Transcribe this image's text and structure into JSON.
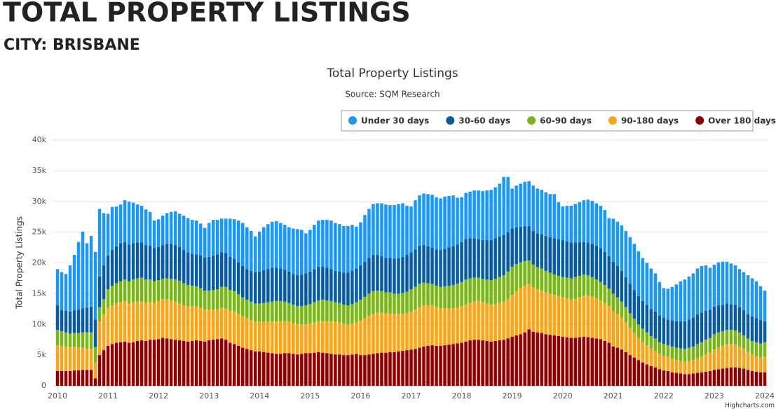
{
  "header": {
    "title": "TOTAL PROPERTY LISTINGS",
    "subtitle": "CITY: BRISBANE"
  },
  "chart_data": {
    "type": "stacked_bar",
    "title": "Total Property Listings",
    "subtitle": "Source: SQM Research",
    "y_label": "Total Property Listings",
    "credits": "Highcharts.com",
    "grid": true,
    "legend": "top-right",
    "x": [
      "2010-01",
      "2010-02",
      "2010-03",
      "2010-04",
      "2010-05",
      "2010-06",
      "2010-07",
      "2010-08",
      "2010-09",
      "2010-10",
      "2010-11",
      "2010-12",
      "2011-01",
      "2011-02",
      "2011-03",
      "2011-04",
      "2011-05",
      "2011-06",
      "2011-07",
      "2011-08",
      "2011-09",
      "2011-10",
      "2011-11",
      "2011-12",
      "2012-01",
      "2012-02",
      "2012-03",
      "2012-04",
      "2012-05",
      "2012-06",
      "2012-07",
      "2012-08",
      "2012-09",
      "2012-10",
      "2012-11",
      "2012-12",
      "2013-01",
      "2013-02",
      "2013-03",
      "2013-04",
      "2013-05",
      "2013-06",
      "2013-07",
      "2013-08",
      "2013-09",
      "2013-10",
      "2013-11",
      "2013-12",
      "2014-01",
      "2014-02",
      "2014-03",
      "2014-04",
      "2014-05",
      "2014-06",
      "2014-07",
      "2014-08",
      "2014-09",
      "2014-10",
      "2014-11",
      "2014-12",
      "2015-01",
      "2015-02",
      "2015-03",
      "2015-04",
      "2015-05",
      "2015-06",
      "2015-07",
      "2015-08",
      "2015-09",
      "2015-10",
      "2015-11",
      "2015-12",
      "2016-01",
      "2016-02",
      "2016-03",
      "2016-04",
      "2016-05",
      "2016-06",
      "2016-07",
      "2016-08",
      "2016-09",
      "2016-10",
      "2016-11",
      "2016-12",
      "2017-01",
      "2017-02",
      "2017-03",
      "2017-04",
      "2017-05",
      "2017-06",
      "2017-07",
      "2017-08",
      "2017-09",
      "2017-10",
      "2017-11",
      "2017-12",
      "2018-01",
      "2018-02",
      "2018-03",
      "2018-04",
      "2018-05",
      "2018-06",
      "2018-07",
      "2018-08",
      "2018-09",
      "2018-10",
      "2018-11",
      "2018-12",
      "2019-01",
      "2019-02",
      "2019-03",
      "2019-04",
      "2019-05",
      "2019-06",
      "2019-07",
      "2019-08",
      "2019-09",
      "2019-10",
      "2019-11",
      "2019-12",
      "2020-01",
      "2020-02",
      "2020-03",
      "2020-04",
      "2020-05",
      "2020-06",
      "2020-07",
      "2020-08",
      "2020-09",
      "2020-10",
      "2020-11",
      "2020-12",
      "2021-01",
      "2021-02",
      "2021-03",
      "2021-04",
      "2021-05",
      "2021-06",
      "2021-07",
      "2021-08",
      "2021-09",
      "2021-10",
      "2021-11",
      "2021-12",
      "2022-01",
      "2022-02",
      "2022-03",
      "2022-04",
      "2022-05",
      "2022-06",
      "2022-07",
      "2022-08",
      "2022-09",
      "2022-10",
      "2022-11",
      "2022-12",
      "2023-01",
      "2023-02",
      "2023-03",
      "2023-04",
      "2023-05",
      "2023-06",
      "2023-07",
      "2023-08",
      "2023-09",
      "2023-10",
      "2023-11",
      "2023-12",
      "2024-01"
    ],
    "xlim": [
      "2009-12",
      "2024-02"
    ],
    "xticks": [
      2010,
      2011,
      2012,
      2013,
      2014,
      2015,
      2016,
      2017,
      2018,
      2019,
      2020,
      2021,
      2022,
      2023,
      2024
    ],
    "ylim": [
      0,
      40000
    ],
    "yticks": [
      0,
      {
        "value": 5000,
        "label": "5k"
      },
      {
        "value": 10000,
        "label": "10k"
      },
      {
        "value": 15000,
        "label": "15k"
      },
      {
        "value": 20000,
        "label": "20k"
      },
      {
        "value": 25000,
        "label": "25k"
      },
      {
        "value": 30000,
        "label": "30k"
      },
      {
        "value": 35000,
        "label": "35k"
      },
      {
        "value": 40000,
        "label": "40k"
      }
    ],
    "series": [
      {
        "name": "Under 30 days",
        "color": "#2196f0",
        "values": [
          5900,
          6200,
          6000,
          7500,
          9000,
          11000,
          12500,
          10500,
          11500,
          11000,
          11000,
          8500,
          6800,
          7000,
          6500,
          6300,
          6800,
          7000,
          6600,
          6200,
          6000,
          5800,
          5500,
          4500,
          4500,
          4800,
          5000,
          5200,
          5500,
          5400,
          5600,
          5600,
          5500,
          5500,
          5200,
          4800,
          5500,
          5800,
          5600,
          5500,
          5600,
          6200,
          6400,
          6800,
          7000,
          6800,
          6500,
          5800,
          6500,
          7000,
          7300,
          7500,
          7600,
          7400,
          7300,
          7200,
          7400,
          7500,
          7300,
          6500,
          6800,
          7200,
          7500,
          7600,
          7800,
          7900,
          7800,
          7700,
          7600,
          7600,
          7500,
          6800,
          7000,
          7600,
          8000,
          8300,
          8400,
          8600,
          8700,
          8600,
          8700,
          8800,
          8700,
          8000,
          7500,
          8000,
          8200,
          8400,
          8500,
          8600,
          8500,
          8400,
          8500,
          8400,
          8300,
          7600,
          7300,
          7500,
          7600,
          7800,
          7900,
          8000,
          8100,
          8200,
          8300,
          8600,
          9500,
          9000,
          6500,
          6800,
          7000,
          7200,
          7300,
          7400,
          7300,
          7200,
          7100,
          7000,
          7200,
          6000,
          5500,
          5800,
          6000,
          6300,
          6600,
          6800,
          7000,
          7000,
          6900,
          6900,
          6800,
          6200,
          7000,
          7200,
          7400,
          7500,
          7600,
          7500,
          7300,
          7000,
          6800,
          6600,
          6200,
          5500,
          4800,
          5000,
          5500,
          6000,
          6500,
          6800,
          7000,
          7200,
          7500,
          7600,
          7400,
          6800,
          6800,
          7000,
          7000,
          6800,
          6600,
          6400,
          6200,
          6200,
          6300,
          6200,
          6000,
          5500,
          5000
        ]
      },
      {
        "name": "30-60 days",
        "color": "#0c5a9e",
        "values": [
          4000,
          3400,
          3500,
          3600,
          3700,
          3800,
          3900,
          4000,
          4200,
          4500,
          5000,
          5500,
          5500,
          5800,
          6000,
          6200,
          6100,
          6000,
          5900,
          5800,
          5700,
          5600,
          5500,
          5400,
          5400,
          5500,
          5600,
          5700,
          5600,
          5500,
          5400,
          5300,
          5200,
          5200,
          5300,
          5400,
          5500,
          5600,
          5700,
          5600,
          5500,
          5400,
          5300,
          5200,
          5100,
          5000,
          5000,
          5100,
          5200,
          5300,
          5400,
          5500,
          5400,
          5300,
          5200,
          5100,
          5000,
          5000,
          5100,
          5200,
          5300,
          5400,
          5500,
          5400,
          5300,
          5200,
          5100,
          5100,
          5200,
          5300,
          5400,
          5500,
          5600,
          5700,
          5800,
          5900,
          5800,
          5700,
          5600,
          5600,
          5700,
          5800,
          5900,
          6000,
          6000,
          6100,
          6200,
          6100,
          6000,
          5900,
          5900,
          6000,
          6100,
          6200,
          6300,
          6400,
          6500,
          6600,
          6500,
          6400,
          6300,
          6300,
          6400,
          6500,
          6600,
          6600,
          6500,
          6400,
          6200,
          6000,
          5800,
          5700,
          5600,
          5500,
          5500,
          5600,
          5700,
          5800,
          5900,
          6000,
          6000,
          5900,
          5800,
          5600,
          5400,
          5300,
          5300,
          5400,
          5500,
          5500,
          5400,
          5300,
          5200,
          5100,
          5000,
          4900,
          4800,
          4700,
          4600,
          4500,
          4500,
          4400,
          4400,
          4300,
          4300,
          4200,
          4200,
          4300,
          4400,
          4500,
          4600,
          4700,
          4800,
          4800,
          4700,
          4600,
          4500,
          4400,
          4300,
          4300,
          4200,
          4200,
          4100,
          4100,
          4000,
          4000,
          3900,
          3800,
          3400
        ]
      },
      {
        "name": "60-90 days",
        "color": "#7ab51d",
        "values": [
          2500,
          2400,
          2300,
          2200,
          2300,
          2400,
          2500,
          2600,
          2700,
          2500,
          2300,
          2500,
          3000,
          3200,
          3300,
          3400,
          3500,
          3600,
          3700,
          3800,
          3900,
          3800,
          3700,
          3500,
          3400,
          3300,
          3400,
          3500,
          3600,
          3700,
          3600,
          3500,
          3400,
          3300,
          3200,
          3100,
          3100,
          3200,
          3300,
          3400,
          3500,
          3400,
          3300,
          3200,
          3100,
          3000,
          3000,
          3000,
          3000,
          3100,
          3200,
          3300,
          3400,
          3300,
          3200,
          3100,
          3000,
          3000,
          3000,
          3100,
          3200,
          3300,
          3400,
          3500,
          3400,
          3300,
          3200,
          3200,
          3100,
          3100,
          3200,
          3300,
          3400,
          3500,
          3600,
          3700,
          3600,
          3500,
          3400,
          3400,
          3300,
          3300,
          3400,
          3500,
          3600,
          3700,
          3800,
          3700,
          3600,
          3500,
          3500,
          3500,
          3600,
          3700,
          3800,
          3900,
          4000,
          4100,
          4000,
          3900,
          3800,
          3800,
          3900,
          4000,
          4100,
          4200,
          4300,
          4500,
          4600,
          4400,
          4200,
          4000,
          3800,
          3700,
          3600,
          3600,
          3500,
          3400,
          3300,
          3300,
          3300,
          3400,
          3500,
          3600,
          3500,
          3400,
          3300,
          3200,
          3100,
          3000,
          2900,
          2800,
          2800,
          2700,
          2600,
          2500,
          2400,
          2300,
          2200,
          2200,
          2100,
          2000,
          2000,
          1900,
          1900,
          1900,
          2000,
          2000,
          2100,
          2100,
          2200,
          2200,
          2300,
          2300,
          2400,
          2400,
          2500,
          2500,
          2400,
          2400,
          2300,
          2300,
          2300,
          2200,
          2200,
          2200,
          2300,
          2300,
          2400
        ]
      },
      {
        "name": "90-180 days",
        "color": "#f7a51c",
        "values": [
          4200,
          4100,
          4000,
          3900,
          3800,
          3700,
          3600,
          3500,
          3400,
          2600,
          5500,
          5800,
          6200,
          6300,
          6400,
          6500,
          6600,
          6400,
          6500,
          6400,
          6300,
          6200,
          6100,
          6000,
          6200,
          6300,
          6400,
          6300,
          6200,
          6000,
          5800,
          5700,
          5600,
          5500,
          5400,
          5200,
          5000,
          4900,
          4800,
          5000,
          5100,
          5200,
          5300,
          5200,
          5100,
          5000,
          4900,
          4800,
          4800,
          4900,
          5000,
          5100,
          5200,
          5300,
          5200,
          5100,
          5000,
          4900,
          4800,
          4700,
          4800,
          4900,
          5000,
          5100,
          5200,
          5300,
          5300,
          5200,
          5100,
          5000,
          5000,
          5100,
          5600,
          6000,
          6300,
          6500,
          6600,
          6500,
          6400,
          6300,
          6200,
          6100,
          6000,
          6000,
          6200,
          6400,
          6600,
          6700,
          6600,
          6500,
          6300,
          6100,
          6000,
          5900,
          5800,
          5800,
          5900,
          6000,
          6100,
          6200,
          6300,
          6200,
          6100,
          6000,
          6000,
          6100,
          6200,
          6400,
          6800,
          7200,
          7500,
          7600,
          7400,
          7200,
          7000,
          6900,
          6800,
          6700,
          6600,
          6500,
          6400,
          6300,
          6200,
          6300,
          6500,
          6700,
          6800,
          6700,
          6500,
          6300,
          6200,
          6000,
          5800,
          5500,
          5200,
          4800,
          4400,
          4000,
          3600,
          3300,
          3100,
          2900,
          2700,
          2500,
          2400,
          2300,
          2200,
          2100,
          2000,
          2000,
          2100,
          2200,
          2400,
          2600,
          2800,
          3000,
          3300,
          3500,
          3700,
          3800,
          3800,
          3700,
          3500,
          3200,
          2900,
          2700,
          2500,
          2400,
          2500
        ]
      },
      {
        "name": "Over 180 days",
        "color": "#8b0000",
        "values": [
          2400,
          2400,
          2400,
          2400,
          2500,
          2500,
          2600,
          2600,
          2600,
          1200,
          5000,
          5800,
          6500,
          6800,
          7000,
          7100,
          7200,
          7000,
          7100,
          7300,
          7400,
          7300,
          7500,
          7500,
          7600,
          7800,
          7700,
          7600,
          7500,
          7400,
          7300,
          7200,
          7300,
          7400,
          7300,
          7200,
          7400,
          7500,
          7600,
          7700,
          7500,
          7000,
          6800,
          6500,
          6200,
          6000,
          5800,
          5600,
          5600,
          5500,
          5400,
          5300,
          5200,
          5200,
          5300,
          5300,
          5200,
          5100,
          5200,
          5300,
          5300,
          5400,
          5500,
          5400,
          5300,
          5200,
          5100,
          5100,
          5000,
          5000,
          5100,
          5200,
          5000,
          5000,
          5100,
          5200,
          5300,
          5400,
          5400,
          5500,
          5500,
          5600,
          5700,
          5800,
          5900,
          6000,
          6200,
          6400,
          6500,
          6600,
          6500,
          6500,
          6600,
          6700,
          6800,
          6900,
          7000,
          7200,
          7400,
          7500,
          7500,
          7400,
          7300,
          7200,
          7300,
          7400,
          7500,
          7700,
          8000,
          8200,
          8400,
          8700,
          9200,
          8800,
          8700,
          8600,
          8400,
          8300,
          8200,
          8100,
          8000,
          7900,
          7800,
          7800,
          7900,
          8000,
          7900,
          7800,
          7700,
          7600,
          7300,
          7000,
          6400,
          6200,
          5900,
          5500,
          5000,
          4600,
          4200,
          3800,
          3500,
          3200,
          3000,
          2700,
          2500,
          2400,
          2200,
          2100,
          2000,
          1900,
          1900,
          2000,
          2100,
          2200,
          2300,
          2400,
          2600,
          2700,
          2800,
          2900,
          3000,
          3000,
          2900,
          2800,
          2600,
          2400,
          2300,
          2200,
          2200
        ]
      }
    ]
  }
}
